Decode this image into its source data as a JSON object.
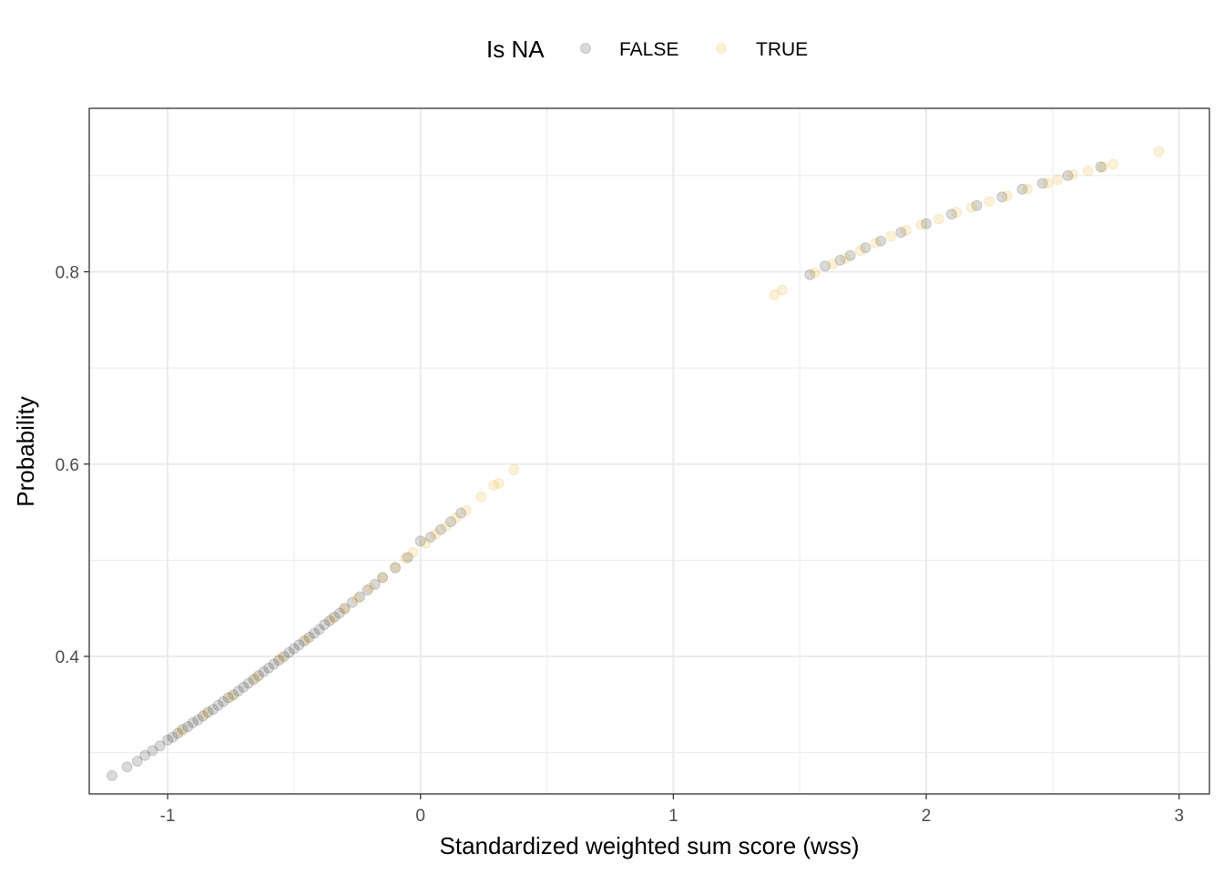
{
  "chart_data": {
    "type": "scatter",
    "title": "",
    "xlabel": "Standardized weighted sum score (wss)",
    "ylabel": "Probability",
    "xlim": [
      -1.31,
      3.12
    ],
    "ylim": [
      0.257,
      0.97
    ],
    "x_ticks": [
      -1,
      0,
      1,
      2,
      3
    ],
    "x_tick_labels": [
      "-1",
      "0",
      "1",
      "2",
      "3"
    ],
    "y_ticks": [
      0.4,
      0.6,
      0.8
    ],
    "y_tick_labels": [
      "0.4",
      "0.6",
      "0.8"
    ],
    "grid": true,
    "legend": {
      "title": "Is NA",
      "position": "top",
      "entries": [
        "FALSE",
        "TRUE"
      ]
    },
    "point_alpha": 0.15,
    "colors": {
      "FALSE": "#000000",
      "TRUE": "#E69F00"
    },
    "series": [
      {
        "name": "FALSE",
        "color": "#000000",
        "points": [
          [
            -1.22,
            0.276
          ],
          [
            -1.16,
            0.285
          ],
          [
            -1.12,
            0.291
          ],
          [
            -1.09,
            0.297
          ],
          [
            -1.06,
            0.302
          ],
          [
            -1.03,
            0.307
          ],
          [
            -1.0,
            0.313
          ],
          [
            -0.98,
            0.316
          ],
          [
            -0.96,
            0.32
          ],
          [
            -0.94,
            0.324
          ],
          [
            -0.92,
            0.327
          ],
          [
            -0.9,
            0.331
          ],
          [
            -0.88,
            0.334
          ],
          [
            -0.86,
            0.338
          ],
          [
            -0.84,
            0.342
          ],
          [
            -0.82,
            0.345
          ],
          [
            -0.8,
            0.349
          ],
          [
            -0.78,
            0.353
          ],
          [
            -0.76,
            0.357
          ],
          [
            -0.74,
            0.36
          ],
          [
            -0.72,
            0.364
          ],
          [
            -0.7,
            0.368
          ],
          [
            -0.68,
            0.372
          ],
          [
            -0.66,
            0.376
          ],
          [
            -0.64,
            0.38
          ],
          [
            -0.62,
            0.384
          ],
          [
            -0.6,
            0.388
          ],
          [
            -0.58,
            0.392
          ],
          [
            -0.56,
            0.396
          ],
          [
            -0.54,
            0.4
          ],
          [
            -0.52,
            0.404
          ],
          [
            -0.5,
            0.408
          ],
          [
            -0.48,
            0.412
          ],
          [
            -0.46,
            0.416
          ],
          [
            -0.44,
            0.42
          ],
          [
            -0.42,
            0.424
          ],
          [
            -0.4,
            0.428
          ],
          [
            -0.38,
            0.433
          ],
          [
            -0.36,
            0.437
          ],
          [
            -0.34,
            0.441
          ],
          [
            -0.32,
            0.445
          ],
          [
            -0.3,
            0.45
          ],
          [
            -0.27,
            0.456
          ],
          [
            -0.24,
            0.462
          ],
          [
            -0.21,
            0.469
          ],
          [
            -0.18,
            0.475
          ],
          [
            -0.15,
            0.482
          ],
          [
            -0.1,
            0.492
          ],
          [
            -0.05,
            0.503
          ],
          [
            0.0,
            0.52
          ],
          [
            0.04,
            0.524
          ],
          [
            0.08,
            0.532
          ],
          [
            0.12,
            0.54
          ],
          [
            0.16,
            0.549
          ],
          [
            1.54,
            0.797
          ],
          [
            1.6,
            0.806
          ],
          [
            1.66,
            0.812
          ],
          [
            1.7,
            0.817
          ],
          [
            1.76,
            0.825
          ],
          [
            1.82,
            0.832
          ],
          [
            1.9,
            0.841
          ],
          [
            2.0,
            0.85
          ],
          [
            2.1,
            0.86
          ],
          [
            2.2,
            0.869
          ],
          [
            2.3,
            0.878
          ],
          [
            2.38,
            0.886
          ],
          [
            2.46,
            0.892
          ],
          [
            2.56,
            0.9
          ],
          [
            2.69,
            0.909
          ]
        ]
      },
      {
        "name": "TRUE",
        "color": "#E69F00",
        "points": [
          [
            -0.95,
            0.322
          ],
          [
            -0.85,
            0.34
          ],
          [
            -0.75,
            0.358
          ],
          [
            -0.65,
            0.378
          ],
          [
            -0.55,
            0.398
          ],
          [
            -0.45,
            0.418
          ],
          [
            -0.35,
            0.439
          ],
          [
            -0.3,
            0.449
          ],
          [
            -0.25,
            0.46
          ],
          [
            -0.2,
            0.471
          ],
          [
            -0.15,
            0.482
          ],
          [
            -0.1,
            0.493
          ],
          [
            -0.06,
            0.502
          ],
          [
            -0.03,
            0.508
          ],
          [
            0.02,
            0.518
          ],
          [
            0.06,
            0.527
          ],
          [
            0.1,
            0.535
          ],
          [
            0.14,
            0.544
          ],
          [
            0.18,
            0.552
          ],
          [
            0.24,
            0.566
          ],
          [
            0.29,
            0.578
          ],
          [
            0.31,
            0.58
          ],
          [
            0.37,
            0.594
          ],
          [
            1.4,
            0.776
          ],
          [
            1.43,
            0.781
          ],
          [
            1.56,
            0.799
          ],
          [
            1.63,
            0.808
          ],
          [
            1.68,
            0.814
          ],
          [
            1.74,
            0.822
          ],
          [
            1.8,
            0.83
          ],
          [
            1.86,
            0.837
          ],
          [
            1.92,
            0.843
          ],
          [
            1.98,
            0.849
          ],
          [
            2.05,
            0.855
          ],
          [
            2.12,
            0.862
          ],
          [
            2.18,
            0.867
          ],
          [
            2.25,
            0.873
          ],
          [
            2.32,
            0.879
          ],
          [
            2.4,
            0.886
          ],
          [
            2.48,
            0.892
          ],
          [
            2.52,
            0.896
          ],
          [
            2.58,
            0.901
          ],
          [
            2.64,
            0.905
          ],
          [
            2.7,
            0.909
          ],
          [
            2.74,
            0.912
          ],
          [
            2.92,
            0.925
          ]
        ]
      }
    ]
  }
}
